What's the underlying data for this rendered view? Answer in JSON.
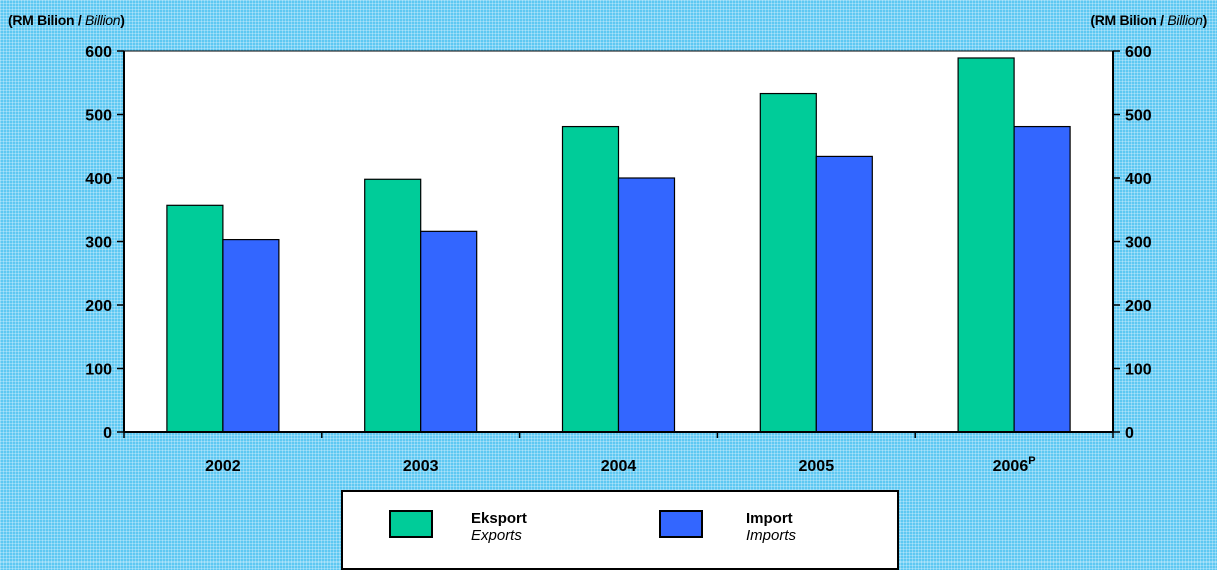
{
  "axis_unit": {
    "left_main": "RM Bilion",
    "left_italic": "Billion",
    "right_main": "RM Bilion",
    "right_italic": "Billion"
  },
  "legend": {
    "exports_main": "Eksport",
    "exports_sub": "Exports",
    "imports_main": "Import",
    "imports_sub": "Imports"
  },
  "colors": {
    "exports": "#00cc99",
    "imports": "#3366ff"
  },
  "chart_data": {
    "type": "bar",
    "categories": [
      "2002",
      "2003",
      "2004",
      "2005",
      "2006"
    ],
    "category_superscripts": [
      "",
      "",
      "",
      "",
      "P"
    ],
    "series": [
      {
        "name": "Eksport / Exports",
        "values": [
          357,
          398,
          481,
          533,
          589
        ]
      },
      {
        "name": "Import / Imports",
        "values": [
          303,
          316,
          400,
          434,
          481
        ]
      }
    ],
    "ylabel": "(RM Bilion / Billion)",
    "ylim": [
      0,
      600
    ],
    "yticks": [
      0,
      100,
      200,
      300,
      400,
      500,
      600
    ],
    "secondary_y_axis": true,
    "grid": false,
    "legend_position": "bottom"
  }
}
